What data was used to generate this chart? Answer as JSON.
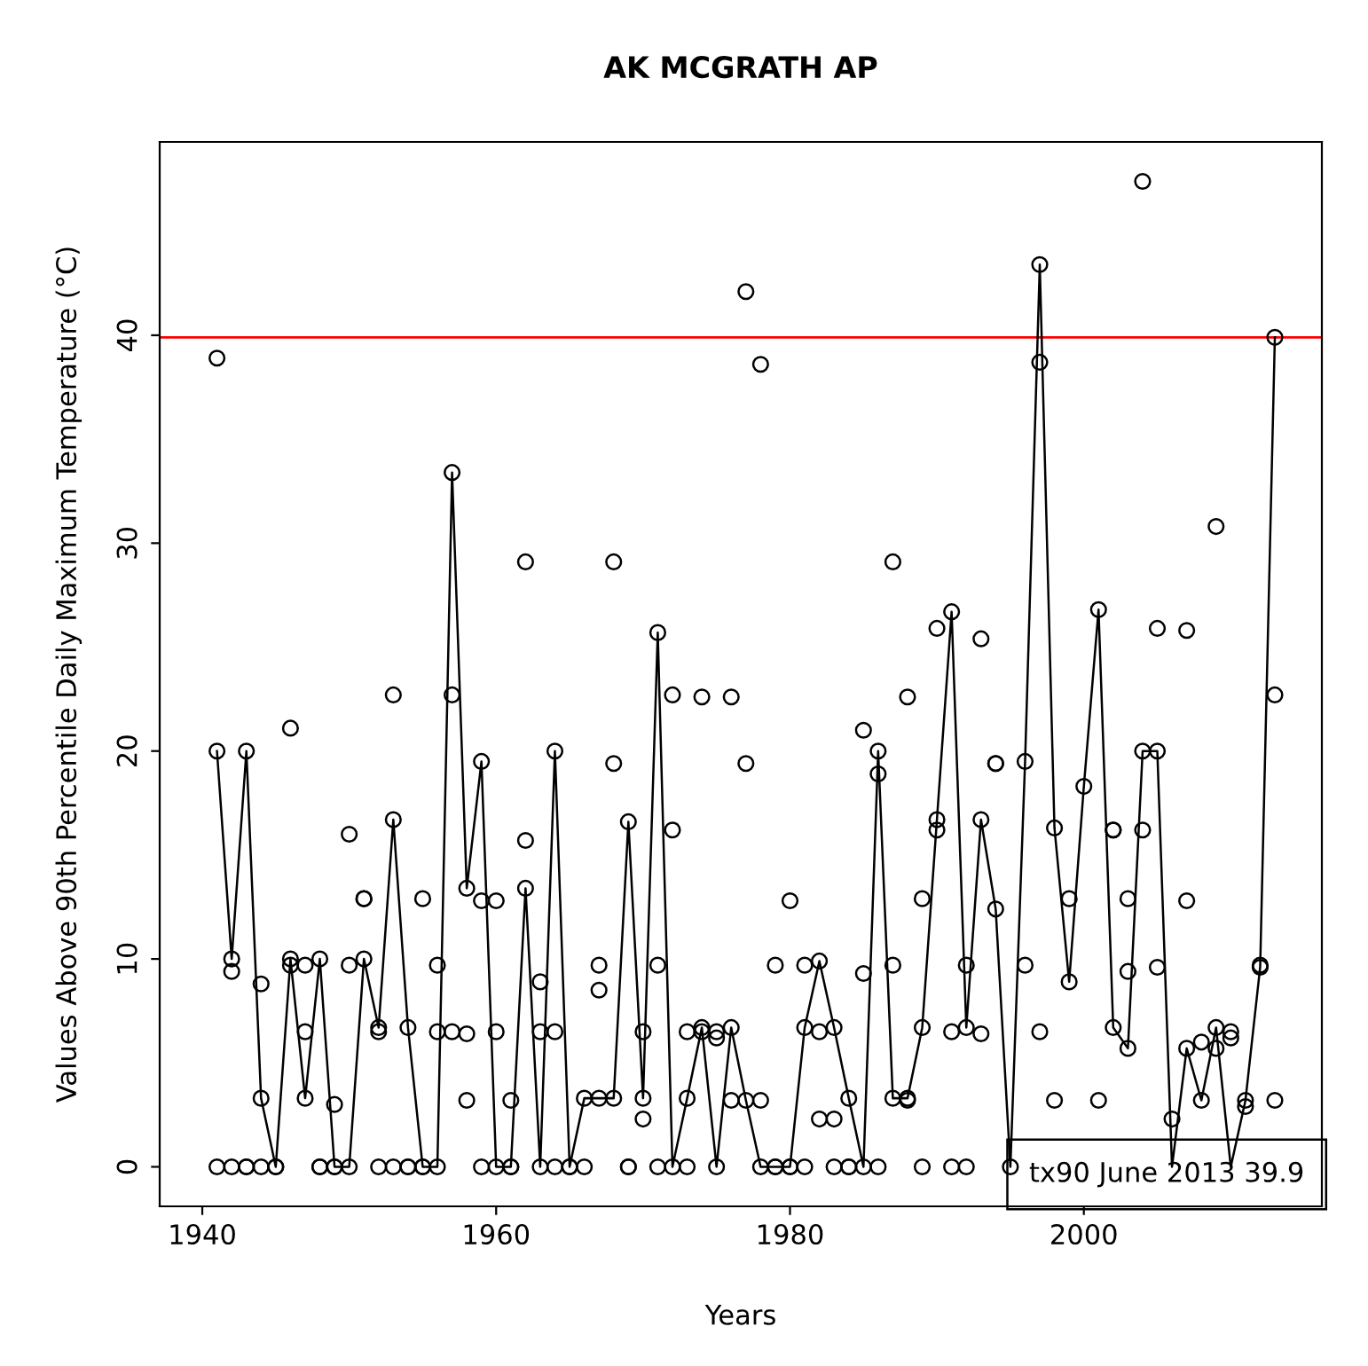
{
  "chart_data": {
    "type": "scatter",
    "title": "AK MCGRATH AP",
    "xlabel": "Years",
    "ylabel": "Values Above 90th Percentile Daily Maximum Temperature (°C)",
    "xlim": [
      1937.1,
      2016.2
    ],
    "ylim": [
      -1.9,
      49.3
    ],
    "xticks": [
      1940,
      1960,
      1980,
      2000
    ],
    "yticks": [
      0,
      10,
      20,
      30,
      40
    ],
    "grid": false,
    "series": [
      {
        "marker": "circle",
        "color": "#000000",
        "x": [
          1941,
          1941,
          1941,
          1942,
          1942,
          1942,
          1943,
          1943,
          1943,
          1944,
          1944,
          1944,
          1945,
          1945,
          1946,
          1946,
          1946,
          1947,
          1947,
          1947,
          1948,
          1948,
          1948,
          1949,
          1949,
          1949,
          1950,
          1950,
          1950,
          1951,
          1951,
          1951,
          1952,
          1952,
          1952,
          1953,
          1953,
          1953,
          1954,
          1954,
          1954,
          1955,
          1955,
          1955,
          1956,
          1956,
          1956,
          1957,
          1957,
          1957,
          1958,
          1958,
          1958,
          1959,
          1959,
          1959,
          1960,
          1960,
          1960,
          1961,
          1961,
          1961,
          1962,
          1962,
          1962,
          1963,
          1963,
          1963,
          1964,
          1964,
          1964,
          1965,
          1965,
          1966,
          1966,
          1967,
          1967,
          1967,
          1968,
          1968,
          1968,
          1969,
          1969,
          1969,
          1970,
          1970,
          1970,
          1971,
          1971,
          1971,
          1972,
          1972,
          1972,
          1973,
          1973,
          1973,
          1974,
          1974,
          1974,
          1975,
          1975,
          1975,
          1976,
          1976,
          1976,
          1977,
          1977,
          1977,
          1978,
          1978,
          1978,
          1979,
          1979,
          1979,
          1980,
          1980,
          1980,
          1981,
          1981,
          1981,
          1982,
          1982,
          1982,
          1983,
          1983,
          1983,
          1984,
          1984,
          1984,
          1985,
          1985,
          1985,
          1986,
          1986,
          1986,
          1987,
          1987,
          1987,
          1988,
          1988,
          1988,
          1989,
          1989,
          1989,
          1990,
          1990,
          1990,
          1991,
          1991,
          1991,
          1992,
          1992,
          1992,
          1993,
          1993,
          1993,
          1994,
          1994,
          1994,
          1995,
          1996,
          1996,
          1997,
          1997,
          1997,
          1998,
          1998,
          1999,
          1999,
          2000,
          2001,
          2001,
          2002,
          2002,
          2002,
          2003,
          2003,
          2003,
          2004,
          2004,
          2004,
          2005,
          2005,
          2005,
          2006,
          2007,
          2007,
          2007,
          2008,
          2008,
          2009,
          2009,
          2009,
          2010,
          2010,
          2011,
          2011,
          2012,
          2012,
          2013,
          2013,
          2013
        ],
        "values": [
          38.9,
          20.0,
          0,
          10.0,
          9.4,
          0,
          20.0,
          0,
          0,
          8.8,
          3.3,
          0,
          0,
          0,
          21.1,
          10.0,
          9.7,
          9.7,
          6.5,
          3.3,
          10.0,
          0,
          0,
          3.0,
          0,
          0,
          16.0,
          9.7,
          0,
          12.9,
          12.9,
          10.0,
          6.7,
          6.5,
          0,
          22.7,
          16.7,
          0,
          6.7,
          0,
          0,
          12.9,
          0,
          0,
          9.7,
          6.5,
          0,
          33.4,
          22.7,
          6.5,
          13.4,
          6.4,
          3.2,
          19.5,
          12.8,
          0,
          12.8,
          6.5,
          0,
          3.2,
          0,
          0,
          29.1,
          15.7,
          13.4,
          8.9,
          6.5,
          0,
          20.0,
          6.5,
          0,
          0,
          0,
          3.3,
          0,
          9.7,
          8.5,
          3.3,
          29.1,
          19.4,
          3.3,
          16.6,
          0,
          0,
          6.5,
          3.3,
          2.3,
          25.7,
          9.7,
          0,
          22.7,
          16.2,
          0,
          6.5,
          3.3,
          0,
          22.6,
          6.7,
          6.5,
          6.5,
          6.2,
          0,
          22.6,
          6.7,
          3.2,
          42.1,
          19.4,
          3.2,
          38.6,
          3.2,
          0,
          9.7,
          0,
          0,
          12.8,
          0,
          0,
          9.7,
          6.7,
          0,
          9.9,
          6.5,
          2.3,
          6.7,
          2.3,
          0,
          3.3,
          0,
          0,
          21.0,
          9.3,
          0,
          20.0,
          18.9,
          0,
          29.1,
          9.7,
          3.3,
          22.6,
          3.3,
          3.2,
          12.9,
          6.7,
          0,
          25.9,
          16.7,
          16.2,
          26.7,
          6.5,
          0,
          9.7,
          6.7,
          0,
          25.4,
          16.7,
          6.4,
          19.4,
          19.4,
          12.4,
          0,
          19.5,
          9.7,
          43.4,
          38.7,
          6.5,
          16.3,
          3.2,
          12.9,
          8.9,
          18.3,
          26.8,
          3.2,
          16.2,
          16.2,
          6.7,
          12.9,
          9.4,
          5.7,
          47.4,
          20.0,
          16.2,
          25.9,
          20.0,
          9.6,
          2.3,
          25.8,
          12.8,
          5.7,
          6.0,
          3.2,
          30.8,
          6.7,
          5.7,
          6.5,
          6.2,
          3.2,
          2.9,
          9.7,
          9.6,
          39.9,
          22.7,
          3.2
        ]
      },
      {
        "type": "line",
        "marker": "none",
        "line_style": "solid",
        "color": "#000000",
        "x": [
          1941,
          1942,
          1943,
          1944,
          1945,
          1946,
          1947,
          1948,
          1949,
          1950,
          1951,
          1952,
          1953,
          1954,
          1955,
          1956,
          1957,
          1958,
          1959,
          1960,
          1961,
          1962,
          1963,
          1964,
          1965,
          1966,
          1967,
          1968,
          1969,
          1970,
          1971,
          1972,
          1973,
          1974,
          1975,
          1976,
          1977,
          1978,
          1979,
          1980,
          1981,
          1982,
          1983,
          1984,
          1985,
          1986,
          1987,
          1988,
          1989,
          1990,
          1991,
          1992,
          1993,
          1994,
          1995,
          1996,
          1997,
          1998,
          1999,
          2000,
          2001,
          2002,
          2003,
          2004,
          2005,
          2006,
          2007,
          2008,
          2009,
          2010,
          2011,
          2012,
          2013
        ],
        "values": [
          20.0,
          10.0,
          20.0,
          3.3,
          0,
          10.0,
          3.3,
          10.0,
          0,
          0,
          10.0,
          6.7,
          16.7,
          6.7,
          0,
          0,
          33.4,
          13.4,
          19.5,
          0,
          0,
          13.4,
          0,
          20.0,
          0,
          3.3,
          3.3,
          3.3,
          16.6,
          3.3,
          25.7,
          0,
          3.3,
          6.7,
          0,
          6.7,
          3.2,
          0,
          0,
          0,
          6.7,
          9.9,
          6.7,
          3.3,
          0,
          20.0,
          3.3,
          3.3,
          6.7,
          16.7,
          26.7,
          6.7,
          16.7,
          12.4,
          0,
          19.5,
          43.4,
          16.3,
          8.9,
          18.3,
          26.8,
          6.7,
          5.7,
          20.0,
          20.0,
          0,
          5.7,
          3.2,
          6.7,
          0,
          3.2,
          9.6,
          39.9
        ]
      }
    ],
    "ref_lines": [
      {
        "axis": "y",
        "value": 39.9,
        "color": "#ff0000",
        "line_style": "solid"
      }
    ],
    "annotations": [
      "tx90 June 2013 39.9"
    ]
  }
}
